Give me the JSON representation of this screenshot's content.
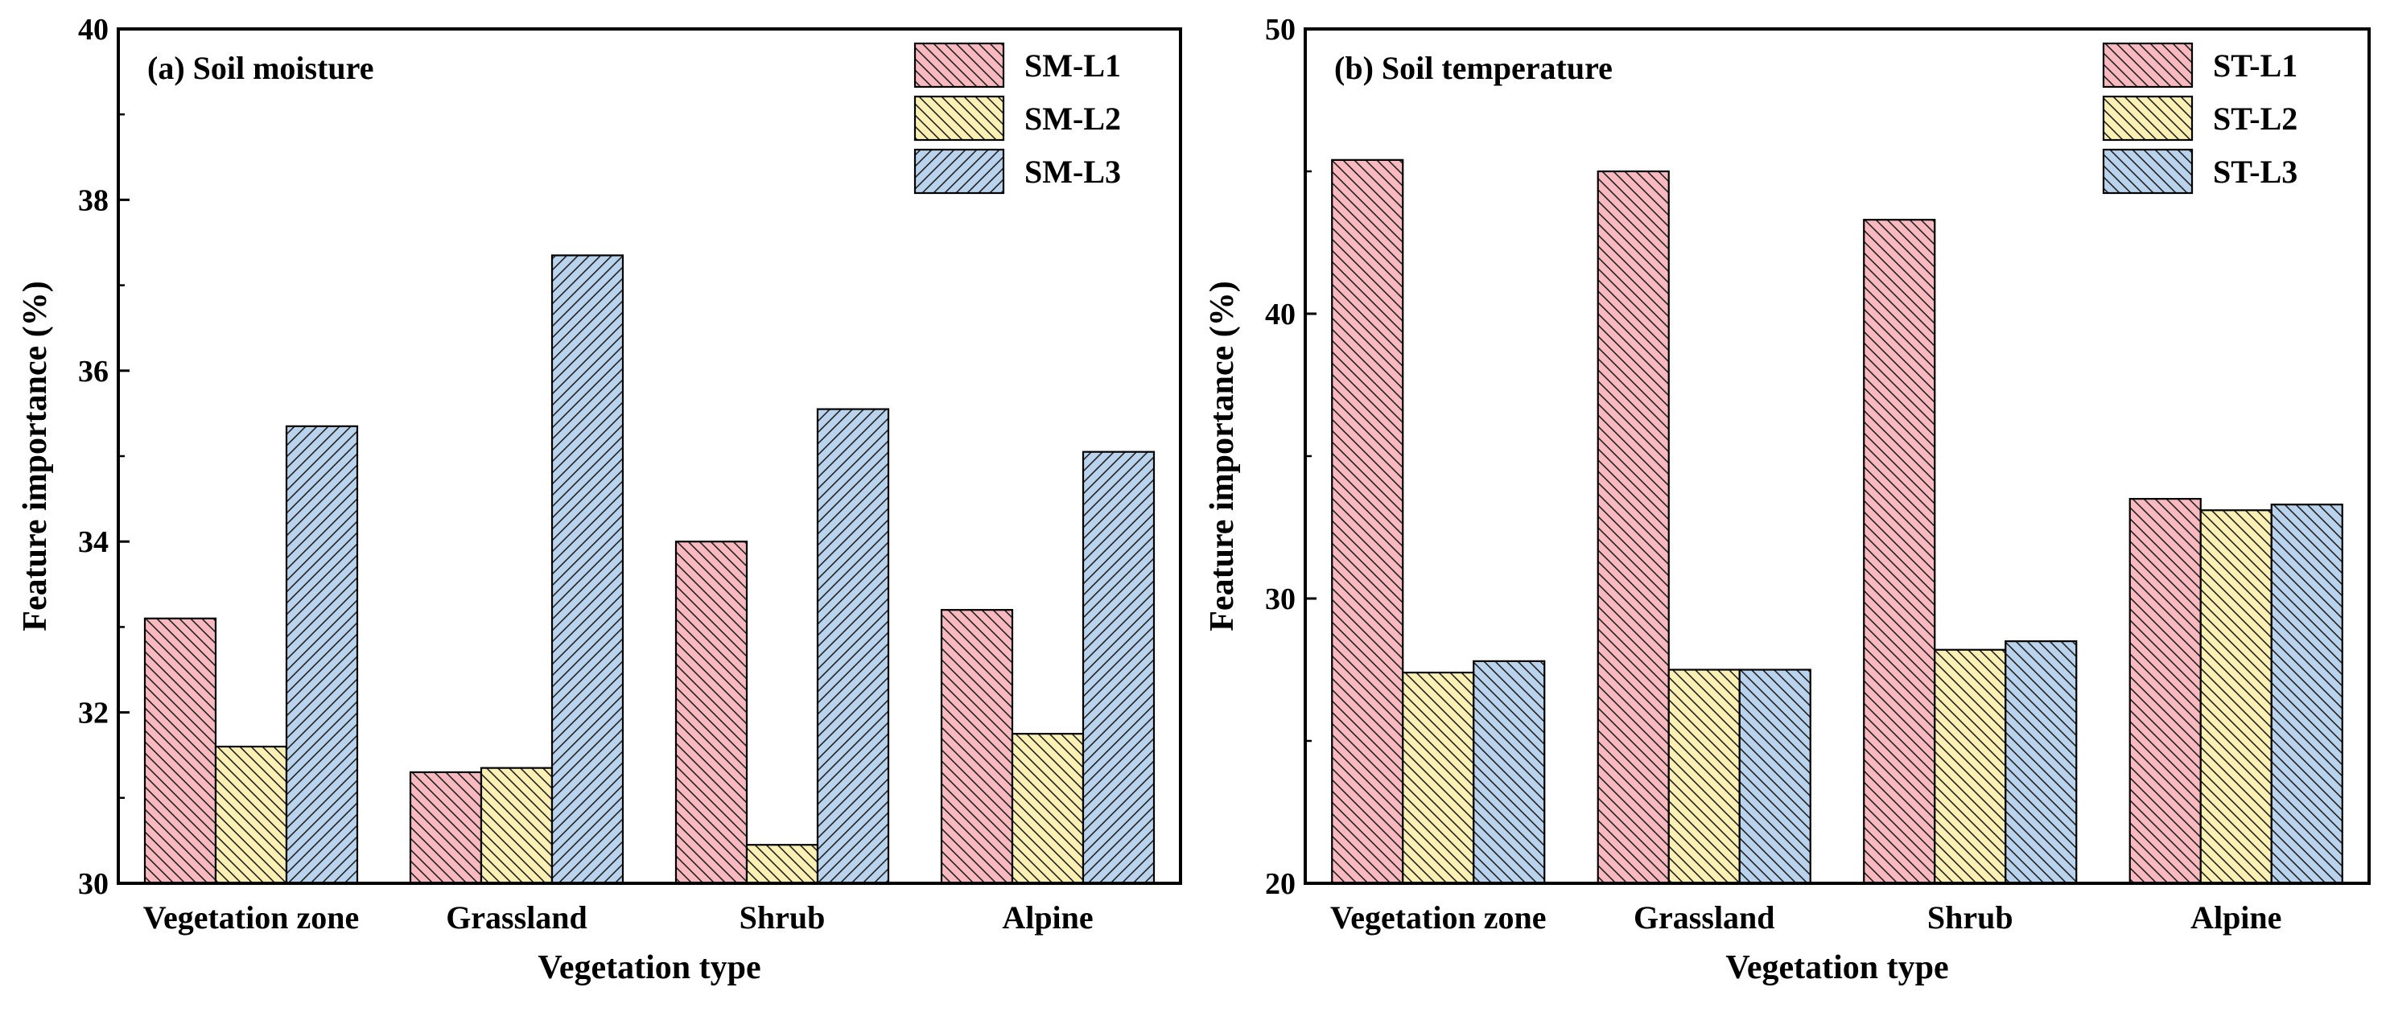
{
  "chart_data": [
    {
      "type": "bar",
      "title": "(a) Soil moisture",
      "xlabel": "Vegetation type",
      "ylabel": "Feature importance (%)",
      "ylim": [
        30,
        40
      ],
      "yticks": [
        30,
        32,
        34,
        36,
        38,
        40
      ],
      "categories": [
        "Vegetation zone",
        "Grassland",
        "Shrub",
        "Alpine"
      ],
      "legend_position": "top-right",
      "grid": false,
      "series": [
        {
          "name": "SM-L1",
          "color": "#f9b9be",
          "hatch": "back",
          "values": [
            33.1,
            31.3,
            34.0,
            33.2
          ]
        },
        {
          "name": "SM-L2",
          "color": "#fcf0b4",
          "hatch": "back",
          "values": [
            31.6,
            31.35,
            30.45,
            31.75
          ]
        },
        {
          "name": "SM-L3",
          "color": "#b9d3ec",
          "hatch": "forward",
          "values": [
            35.35,
            37.35,
            35.55,
            35.05
          ]
        }
      ]
    },
    {
      "type": "bar",
      "title": "(b) Soil temperature",
      "xlabel": "Vegetation type",
      "ylabel": "Feature importance (%)",
      "ylim": [
        20,
        50
      ],
      "yticks": [
        20,
        30,
        40,
        50
      ],
      "categories": [
        "Vegetation zone",
        "Grassland",
        "Shrub",
        "Alpine"
      ],
      "legend_position": "top-right",
      "grid": false,
      "series": [
        {
          "name": "ST-L1",
          "color": "#f9b9be",
          "hatch": "back",
          "values": [
            45.4,
            45.0,
            43.3,
            33.5
          ]
        },
        {
          "name": "ST-L2",
          "color": "#fcf0b4",
          "hatch": "back",
          "values": [
            27.4,
            27.5,
            28.2,
            33.1
          ]
        },
        {
          "name": "ST-L3",
          "color": "#b9d3ec",
          "hatch": "back",
          "values": [
            27.8,
            27.5,
            28.5,
            33.3
          ]
        }
      ]
    }
  ]
}
